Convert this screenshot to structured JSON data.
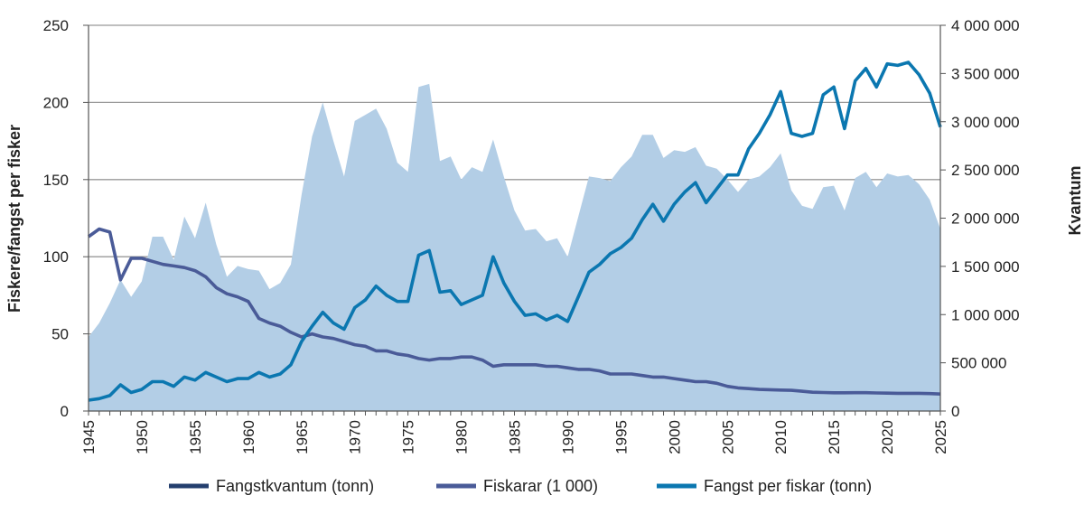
{
  "chart_data": {
    "type": "area+line",
    "ylabel_left": "Fiskere/fangst per fisker",
    "ylabel_right": "Kvantum",
    "ylim_left": [
      0,
      250
    ],
    "ylim_right": [
      0,
      4000000
    ],
    "yticks_left": [
      "0",
      "50",
      "100",
      "150",
      "200",
      "250"
    ],
    "yticks_right": [
      "0",
      "500 000",
      "1 000 000",
      "1 500 000",
      "2 000 000",
      "2 500 000",
      "3 000 000",
      "3 500 000",
      "4 000 000"
    ],
    "xlim": [
      1945,
      2025
    ],
    "xticks": [
      "1945",
      "1950",
      "1955",
      "1960",
      "1965",
      "1970",
      "1975",
      "1980",
      "1985",
      "1990",
      "1995",
      "2000",
      "2005",
      "2010",
      "2015",
      "2020",
      "2025"
    ],
    "grid": true,
    "legend_placement": "bottom",
    "colors": {
      "area": "#b3cee6",
      "fangstkvantum_legend": "#243f6e",
      "fiskarar": "#4a5b98",
      "fangst_per_fiskar": "#0b77b0",
      "grid": "#999999"
    },
    "x": [
      1945,
      1946,
      1947,
      1948,
      1949,
      1950,
      1951,
      1952,
      1953,
      1954,
      1955,
      1956,
      1957,
      1958,
      1959,
      1960,
      1961,
      1962,
      1963,
      1964,
      1965,
      1966,
      1967,
      1968,
      1969,
      1970,
      1971,
      1972,
      1973,
      1974,
      1975,
      1976,
      1977,
      1978,
      1979,
      1980,
      1981,
      1982,
      1983,
      1984,
      1985,
      1986,
      1987,
      1988,
      1989,
      1990,
      1991,
      1992,
      1993,
      1994,
      1995,
      1996,
      1997,
      1998,
      1999,
      2000,
      2001,
      2002,
      2003,
      2004,
      2005,
      2006,
      2007,
      2008,
      2009,
      2010,
      2011,
      2012,
      2013,
      2014,
      2015,
      2016,
      2017,
      2018,
      2019,
      2020,
      2021,
      2022,
      2023,
      2024,
      2025
    ],
    "series": [
      {
        "name": "Fangstkvantum (tonn)",
        "axis": "right",
        "kind": "area",
        "values": [
          768000,
          912000,
          1120000,
          1360000,
          1184000,
          1344000,
          1808000,
          1808000,
          1568000,
          2016000,
          1792000,
          2160000,
          1728000,
          1392000,
          1504000,
          1472000,
          1456000,
          1264000,
          1328000,
          1520000,
          2240000,
          2848000,
          3200000,
          2800000,
          2432000,
          3008000,
          3072000,
          3136000,
          2928000,
          2576000,
          2480000,
          3360000,
          3392000,
          2592000,
          2640000,
          2400000,
          2528000,
          2480000,
          2816000,
          2432000,
          2080000,
          1872000,
          1888000,
          1760000,
          1792000,
          1600000,
          2016000,
          2432000,
          2416000,
          2384000,
          2528000,
          2640000,
          2864000,
          2864000,
          2624000,
          2704000,
          2688000,
          2736000,
          2544000,
          2512000,
          2400000,
          2272000,
          2400000,
          2432000,
          2528000,
          2672000,
          2288000,
          2128000,
          2096000,
          2320000,
          2336000,
          2080000,
          2416000,
          2480000,
          2320000,
          2464000,
          2432000,
          2448000,
          2352000,
          2192000,
          1888000
        ]
      },
      {
        "name": "Fiskarar (1 000)",
        "axis": "left",
        "kind": "line",
        "values": [
          113,
          118,
          116,
          85,
          99,
          99,
          97,
          95,
          94,
          93,
          91,
          87,
          80,
          76,
          74,
          71,
          60,
          57,
          55,
          51,
          48,
          50,
          48,
          47,
          45,
          43,
          42,
          39,
          39,
          37,
          36,
          34,
          33,
          34,
          34,
          35,
          35,
          33,
          29,
          30,
          30,
          30,
          30,
          29,
          29,
          28,
          27,
          27,
          26,
          24,
          24,
          24,
          23,
          22,
          22,
          21,
          20,
          19,
          19,
          18,
          16,
          15,
          14.5,
          14,
          13.8,
          13.6,
          13.4,
          12.8,
          12.2,
          12,
          11.8,
          11.8,
          11.9,
          11.9,
          11.7,
          11.6,
          11.5,
          11.5,
          11.5,
          11.3,
          11
        ]
      },
      {
        "name": "Fangst per fiskar (tonn)",
        "axis": "left",
        "kind": "line",
        "values": [
          7,
          8,
          10,
          17,
          12,
          14,
          19,
          19,
          16,
          22,
          20,
          25,
          22,
          19,
          21,
          21,
          25,
          22,
          24,
          30,
          45,
          55,
          64,
          57,
          53,
          67,
          72,
          81,
          75,
          71,
          71,
          101,
          104,
          77,
          78,
          69,
          72,
          75,
          100,
          83,
          71,
          62,
          63,
          59,
          62,
          58,
          74,
          90,
          95,
          102,
          106,
          112,
          124,
          134,
          123,
          134,
          142,
          148,
          135,
          144,
          153,
          153,
          170,
          180,
          192,
          207,
          180,
          178,
          180,
          205,
          210,
          183,
          214,
          222,
          210,
          225,
          224,
          226,
          218,
          206,
          184
        ]
      }
    ]
  }
}
